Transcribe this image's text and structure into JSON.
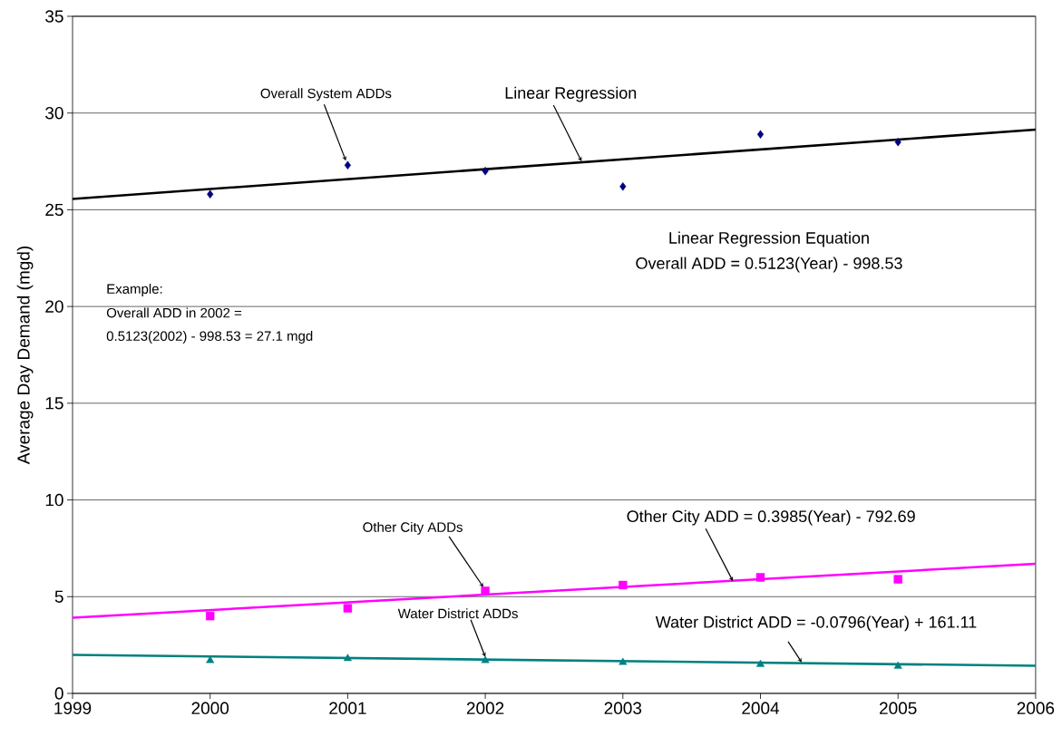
{
  "chart_data": {
    "type": "scatter",
    "ylabel": "Average Day Demand (mgd)",
    "xlim": [
      1999,
      2006
    ],
    "xticks": [
      1999,
      2000,
      2001,
      2002,
      2003,
      2004,
      2005,
      2006
    ],
    "ylim": [
      0,
      35
    ],
    "yticks": [
      0,
      5,
      10,
      15,
      20,
      25,
      30,
      35
    ],
    "grid": "y",
    "series": [
      {
        "type": "line",
        "color": "#000000",
        "marker": "none",
        "x": [
          1999,
          2006
        ],
        "values": [
          25.56,
          29.14
        ]
      },
      {
        "color": "#000080",
        "marker": "diamond",
        "x": [
          2000,
          2001,
          2002,
          2003,
          2004,
          2005
        ],
        "values": [
          25.8,
          27.3,
          27.0,
          26.2,
          28.9,
          28.5
        ]
      },
      {
        "type": "line",
        "color": "#ff00ff",
        "marker": "none",
        "x": [
          1999,
          2006
        ],
        "values": [
          3.91,
          6.7
        ]
      },
      {
        "color": "#ff00ff",
        "marker": "square",
        "x": [
          2000,
          2001,
          2002,
          2003,
          2004,
          2005
        ],
        "values": [
          4.0,
          4.4,
          5.3,
          5.6,
          6.0,
          5.9
        ]
      },
      {
        "type": "line",
        "color": "#008080",
        "marker": "none",
        "x": [
          1999,
          2006
        ],
        "values": [
          1.99,
          1.43
        ]
      },
      {
        "color": "#008080",
        "marker": "triangle",
        "x": [
          2000,
          2001,
          2002,
          2003,
          2004,
          2005
        ],
        "values": [
          1.7,
          1.8,
          1.7,
          1.6,
          1.5,
          1.4
        ]
      }
    ],
    "annotations": [
      {
        "text": "Overall System ADDs",
        "x": 2001,
        "y": 27.3
      },
      {
        "text": "Linear Regression",
        "x": 2002.7,
        "y": 27.5
      },
      "Linear Regression Equation",
      "Overall ADD = 0.5123(Year) - 998.53",
      "Example:",
      "Overall ADD in 2002 =",
      "0.5123(2002) - 998.53 =  27.1 mgd",
      {
        "text": "Other City ADDs",
        "x": 2002,
        "y": 5.3
      },
      {
        "text": "Other City ADD = 0.3985(Year) - 792.69",
        "x": 2003.8,
        "y": 5.8
      },
      {
        "text": "Water District  ADDs",
        "x": 2002,
        "y": 1.7
      },
      {
        "text": "Water District ADD = -0.0796(Year) + 161.11",
        "x": 2004.3,
        "y": 1.6
      }
    ]
  }
}
